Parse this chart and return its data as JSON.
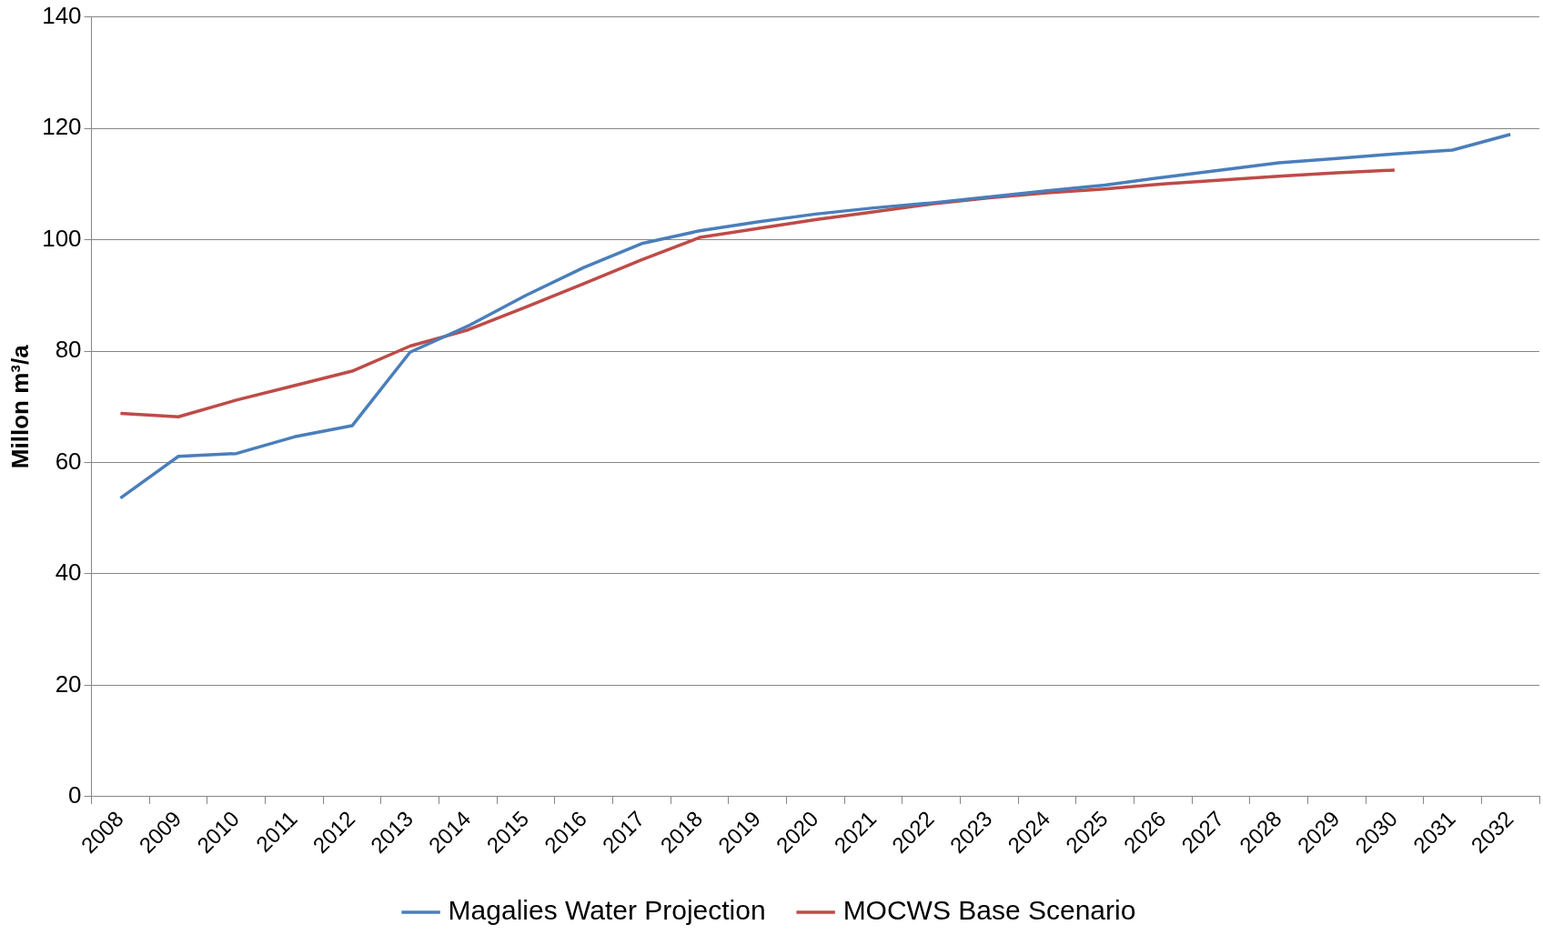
{
  "chart_data": {
    "type": "line",
    "ylabel": "Millon m³/a",
    "categories": [
      "2008",
      "2009",
      "2010",
      "2011",
      "2012",
      "2013",
      "2014",
      "2015",
      "2016",
      "2017",
      "2018",
      "2019",
      "2020",
      "2021",
      "2022",
      "2023",
      "2024",
      "2025",
      "2026",
      "2027",
      "2028",
      "2029",
      "2030",
      "2031",
      "2032"
    ],
    "series": [
      {
        "name": "Magalies Water Projection",
        "color": "#4a7ebb",
        "values": [
          53.6,
          61.1,
          61.6,
          64.6,
          66.6,
          79.8,
          84.5,
          90,
          95,
          99.3,
          101.6,
          103.2,
          104.6,
          105.7,
          106.6,
          107.7,
          108.8,
          109.8,
          111.2,
          112.5,
          113.8,
          114.6,
          115.4,
          116.1,
          118.9
        ]
      },
      {
        "name": "MOCWS Base Scenario",
        "color": "#be4b48",
        "values": [
          68.8,
          68.2,
          71.2,
          73.8,
          76.4,
          80.9,
          83.8,
          87.9,
          92.1,
          96.4,
          100.4,
          102,
          103.6,
          105,
          106.4,
          107.5,
          108.4,
          109.1,
          110,
          110.7,
          111.4,
          112,
          112.5,
          null,
          null
        ]
      }
    ],
    "ylim": [
      0,
      140
    ],
    "yticks": [
      0,
      20,
      40,
      60,
      80,
      100,
      120,
      140
    ],
    "grid": "y",
    "legend": "bottom",
    "marker": "none",
    "line_style": "solid"
  }
}
